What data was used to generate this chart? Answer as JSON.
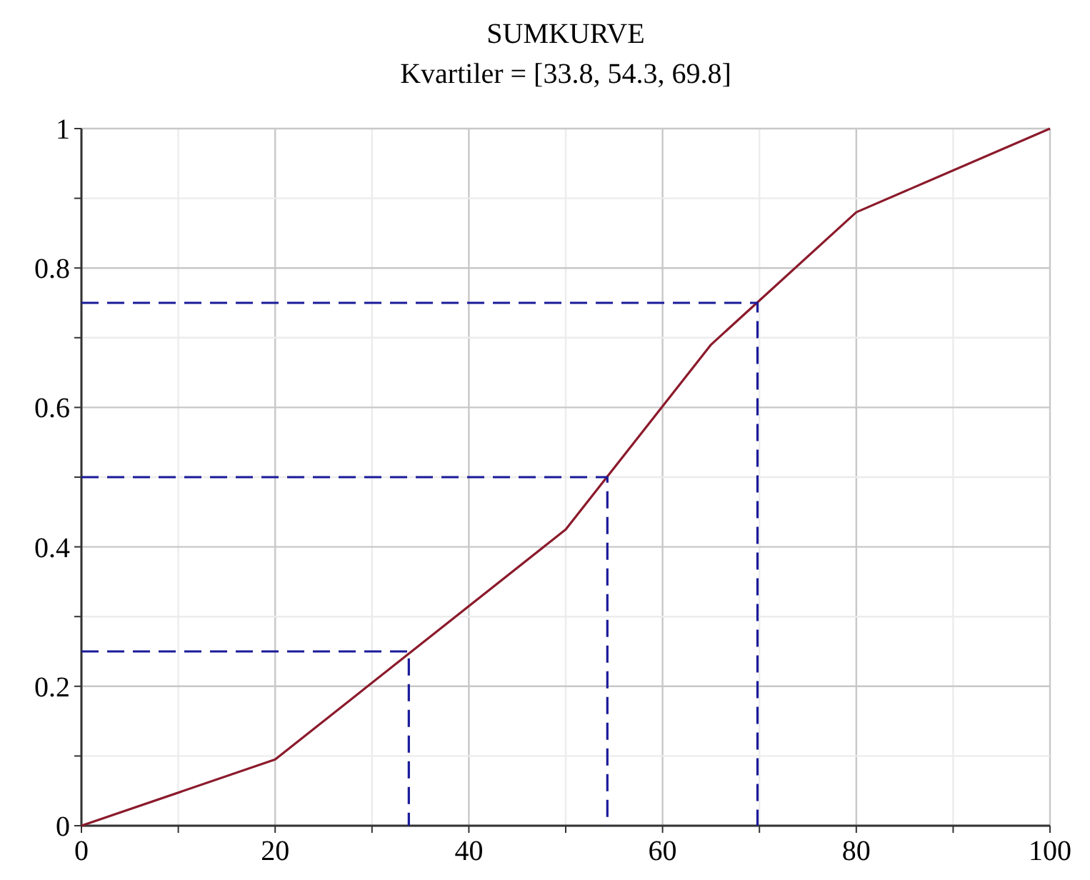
{
  "chart_data": {
    "type": "line",
    "title": "SUMKURVE",
    "subtitle": "Kvartiler = [33.8, 54.3, 69.8]",
    "xlim": [
      0,
      100
    ],
    "ylim": [
      0,
      1
    ],
    "xticks": [
      0,
      {
        "value": 10,
        "label": null
      },
      20,
      {
        "value": 30,
        "label": null
      },
      40,
      {
        "value": 50,
        "label": null
      },
      60,
      {
        "value": 70,
        "label": null
      },
      80,
      {
        "value": 90,
        "label": null
      },
      100
    ],
    "yticks": [
      0,
      {
        "value": 0.1,
        "label": null
      },
      0.2,
      {
        "value": 0.3,
        "label": null
      },
      0.4,
      {
        "value": 0.5,
        "label": null
      },
      0.6,
      {
        "value": 0.7,
        "label": null
      },
      0.8,
      {
        "value": 0.9,
        "label": null
      },
      1
    ],
    "grid": true,
    "marker": "none",
    "series": [
      {
        "color": "#8b1a2b",
        "x": [
          0,
          20,
          50,
          65,
          80,
          100
        ],
        "values": [
          0,
          0.095,
          0.425,
          0.69,
          0.88,
          1
        ],
        "line_style": "solid"
      },
      {
        "color": "#1a1a9a",
        "x": [
          0,
          33.8,
          33.8
        ],
        "values": [
          0.25,
          0.25,
          0
        ],
        "line_style": "dashed"
      },
      {
        "color": "#1a1a9a",
        "x": [
          0,
          54.3,
          54.3
        ],
        "values": [
          0.5,
          0.5,
          0
        ],
        "line_style": "dashed"
      },
      {
        "color": "#1a1a9a",
        "x": [
          0,
          69.8,
          69.8
        ],
        "values": [
          0.75,
          0.75,
          0
        ],
        "line_style": "dashed"
      }
    ]
  }
}
